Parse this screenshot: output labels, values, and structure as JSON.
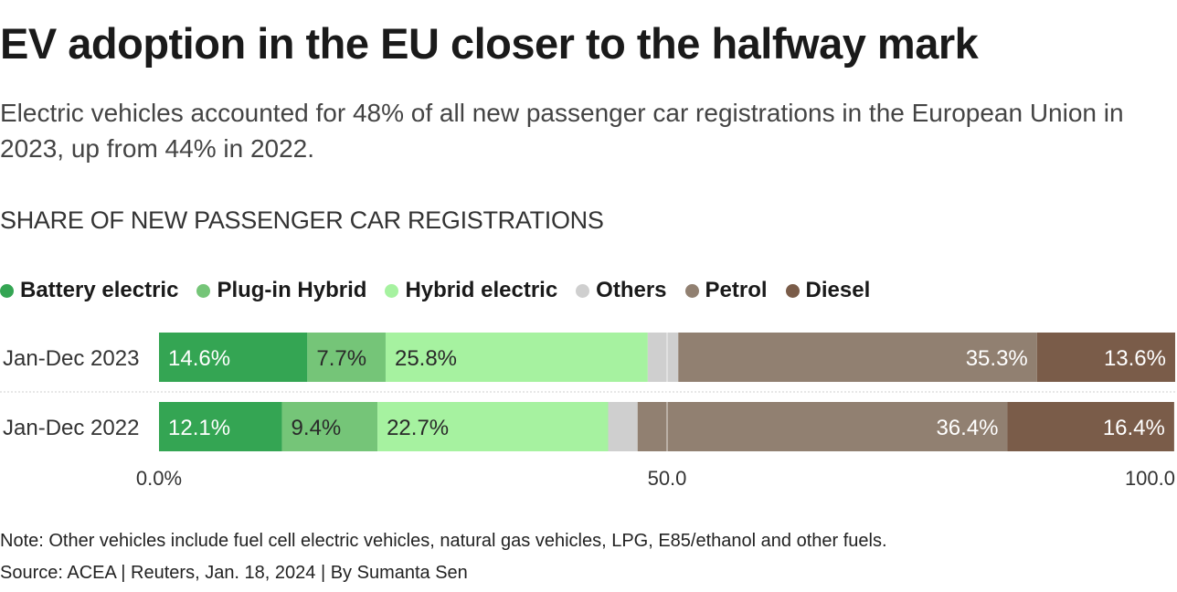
{
  "title": "EV adoption in the EU closer to the halfway mark",
  "subtitle": "Electric vehicles accounted for 48% of all new passenger car registrations in the European Union in 2023, up from 44% in 2022.",
  "section_label": "SHARE OF NEW PASSENGER CAR REGISTRATIONS",
  "note": "Note: Other vehicles include fuel cell electric vehicles, natural gas vehicles, LPG, E85/ethanol and other fuels.",
  "source": "Source: ACEA | Reuters, Jan. 18, 2024 | By Sumanta Sen",
  "chart_data": {
    "type": "bar",
    "orientation": "horizontal",
    "stacked": true,
    "title": "SHARE OF NEW PASSENGER CAR REGISTRATIONS",
    "categories": [
      "Jan-Dec 2023",
      "Jan-Dec 2022"
    ],
    "series": [
      {
        "name": "Battery electric",
        "color": "#34a553",
        "label_color": "#ffffff",
        "values": [
          14.6,
          12.1
        ],
        "labels": [
          "14.6%",
          "12.1%"
        ]
      },
      {
        "name": "Plug-in Hybrid",
        "color": "#75c578",
        "label_color": "#2a2a2a",
        "values": [
          7.7,
          9.4
        ],
        "labels": [
          "7.7%",
          "9.4%"
        ]
      },
      {
        "name": "Hybrid electric",
        "color": "#a6f2a0",
        "label_color": "#2a2a2a",
        "values": [
          25.8,
          22.7
        ],
        "labels": [
          "25.8%",
          "22.7%"
        ]
      },
      {
        "name": "Others",
        "color": "#cfcfcf",
        "label_color": "#2a2a2a",
        "values": [
          3.0,
          2.9
        ],
        "labels": [
          "",
          ""
        ]
      },
      {
        "name": "Petrol",
        "color": "#918071",
        "label_color": "#ffffff",
        "values": [
          35.3,
          36.4
        ],
        "labels": [
          "35.3%",
          "36.4%"
        ]
      },
      {
        "name": "Diesel",
        "color": "#7a5c49",
        "label_color": "#ffffff",
        "values": [
          13.6,
          16.4
        ],
        "labels": [
          "13.6%",
          "16.4%"
        ]
      }
    ],
    "xlim": [
      0,
      100
    ],
    "ticks": [
      0,
      50,
      100
    ],
    "tick_labels": [
      "0.0%",
      "50.0",
      "100.0"
    ],
    "grid": true,
    "legend_position": "top-left"
  }
}
